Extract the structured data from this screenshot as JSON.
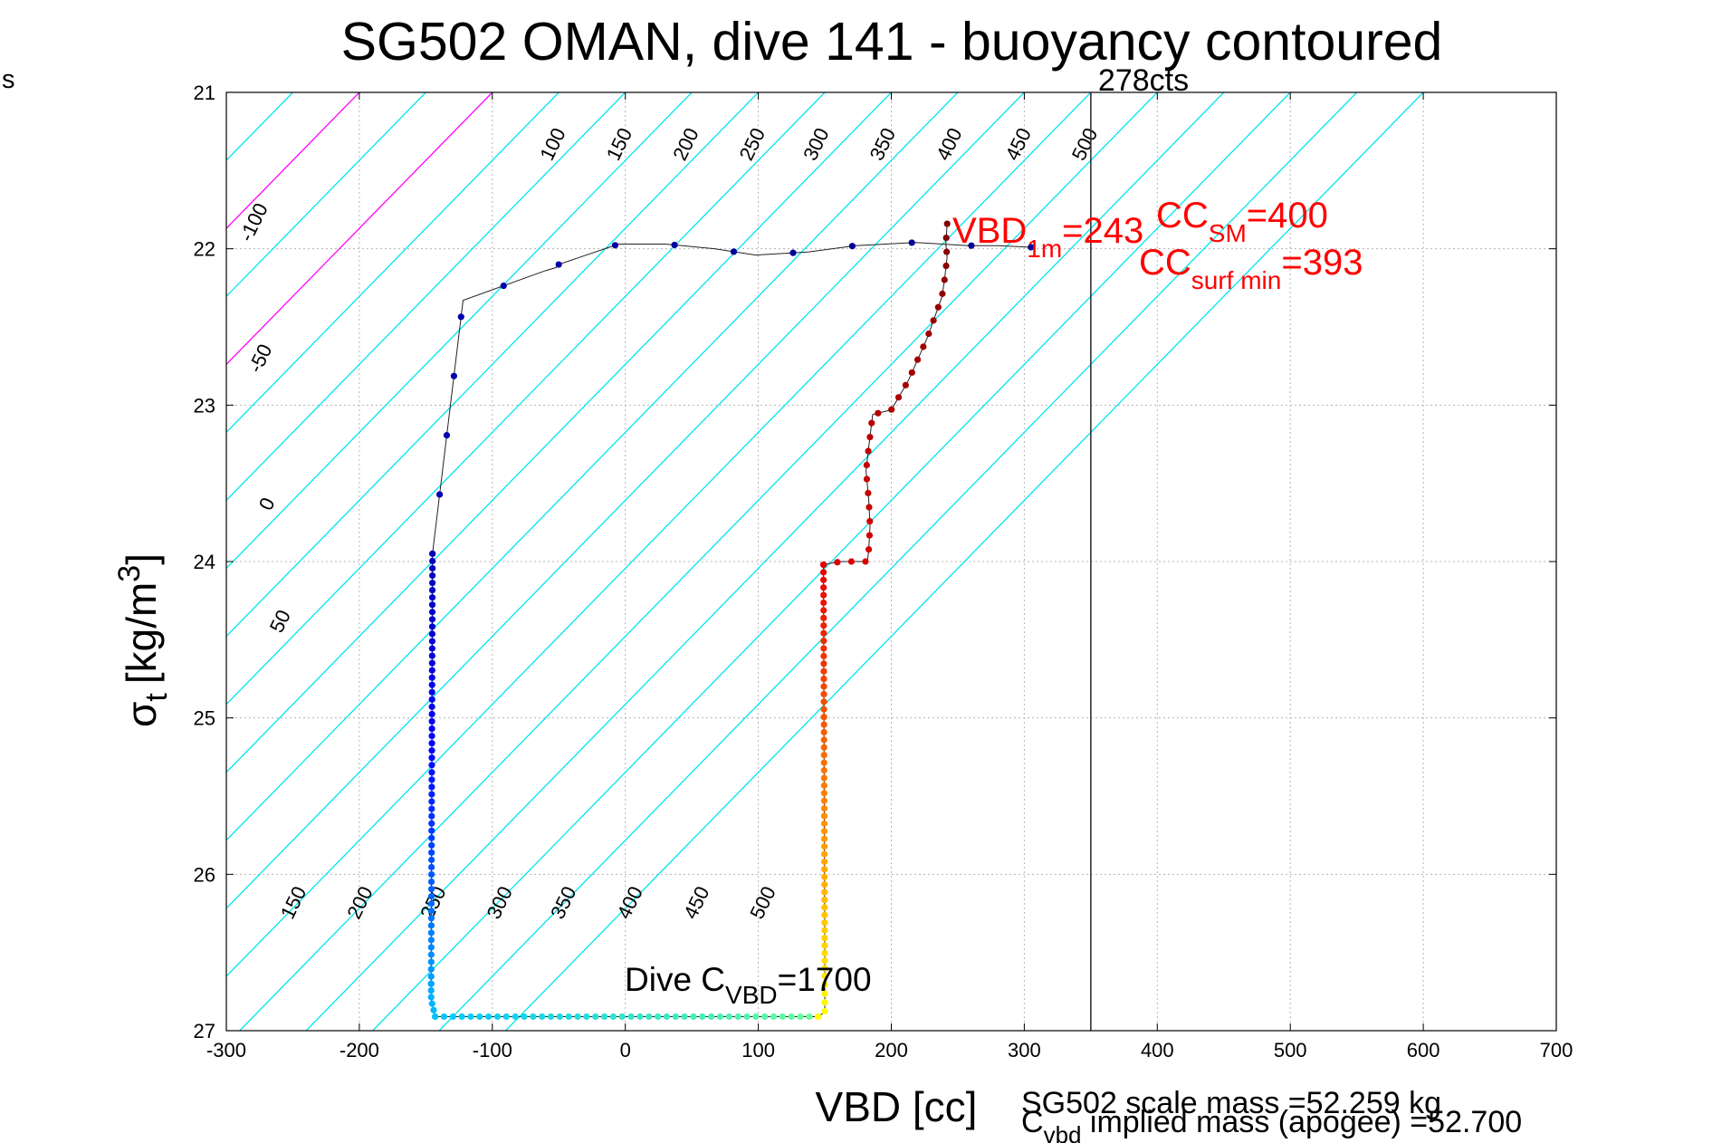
{
  "edge_text": "s",
  "chart_data": {
    "type": "scatter",
    "title": "SG502 OMAN, dive 141 - buoyancy contoured",
    "xlabel": "VBD [cc]",
    "ylabel": {
      "sym": "σ",
      "sub": "t",
      "unit": "[kg/m",
      "sup": "3",
      "close": "]"
    },
    "xlim": [
      -300,
      700
    ],
    "ylim": [
      21,
      27
    ],
    "y_reversed": true,
    "grid": true,
    "x_ticks": [
      -300,
      -200,
      -100,
      0,
      100,
      200,
      300,
      400,
      500,
      600,
      700
    ],
    "x_tick_labels": [
      "-300",
      "-200",
      "-100",
      "0",
      "100",
      "200",
      "300",
      "400",
      "500",
      "600",
      "700"
    ],
    "y_ticks": [
      21,
      22,
      23,
      24,
      25,
      26,
      27
    ],
    "y_tick_labels": [
      "21",
      "22",
      "23",
      "24",
      "25",
      "26",
      "27"
    ],
    "contour_slope_cc_per_sigma": 115,
    "contours": [
      {
        "v": -150,
        "color": "#00e5ee"
      },
      {
        "v": -100,
        "color": "#00e5ee"
      },
      {
        "v": -50,
        "color": "#00e5ee"
      },
      {
        "v": 0,
        "color": "#0000dd"
      },
      {
        "v": 50,
        "color": "#00e5ee"
      },
      {
        "v": 100,
        "color": "#ff00ff"
      },
      {
        "v": 150,
        "color": "#00e5ee"
      },
      {
        "v": 200,
        "color": "#ff00ff"
      },
      {
        "v": 250,
        "color": "#00e5ee"
      },
      {
        "v": 300,
        "color": "#00e5ee"
      },
      {
        "v": 350,
        "color": "#00e5ee"
      },
      {
        "v": 400,
        "color": "#00e5ee"
      },
      {
        "v": 450,
        "color": "#00e5ee"
      },
      {
        "v": 500,
        "color": "#00e5ee"
      },
      {
        "v": 550,
        "color": "#00e5ee"
      },
      {
        "v": 600,
        "color": "#00e5ee"
      },
      {
        "v": 650,
        "color": "#00e5ee"
      },
      {
        "v": 700,
        "color": "#00e5ee"
      },
      {
        "v": 750,
        "color": "#00e5ee"
      },
      {
        "v": 800,
        "color": "#00e5ee"
      },
      {
        "v": 850,
        "color": "#00e5ee"
      },
      {
        "v": 900,
        "color": "#00e5ee"
      }
    ],
    "contour_labels": [
      {
        "text": "-100",
        "x": -275,
        "y": 21.85
      },
      {
        "text": "-50",
        "x": -270,
        "y": 22.72
      },
      {
        "text": "0",
        "x": -265,
        "y": 23.65
      },
      {
        "text": "50",
        "x": -255,
        "y": 24.4
      },
      {
        "text": "100",
        "x": -50,
        "y": 21.35
      },
      {
        "text": "150",
        "x": 0,
        "y": 21.35
      },
      {
        "text": "200",
        "x": 50,
        "y": 21.35
      },
      {
        "text": "250",
        "x": 100,
        "y": 21.35
      },
      {
        "text": "300",
        "x": 148,
        "y": 21.35
      },
      {
        "text": "350",
        "x": 198,
        "y": 21.35
      },
      {
        "text": "400",
        "x": 248,
        "y": 21.35
      },
      {
        "text": "450",
        "x": 300,
        "y": 21.35
      },
      {
        "text": "500",
        "x": 350,
        "y": 21.35
      },
      {
        "text": "150",
        "x": -245,
        "y": 26.2
      },
      {
        "text": "200",
        "x": -195,
        "y": 26.2
      },
      {
        "text": "250",
        "x": -140,
        "y": 26.2
      },
      {
        "text": "300",
        "x": -90,
        "y": 26.2
      },
      {
        "text": "350",
        "x": -42,
        "y": 26.2
      },
      {
        "text": "400",
        "x": 8,
        "y": 26.2
      },
      {
        "text": "450",
        "x": 58,
        "y": 26.2
      },
      {
        "text": "500",
        "x": 108,
        "y": 26.2
      }
    ],
    "series": [
      {
        "direction": "dive",
        "colors": [
          "#00008f",
          "#0000ff",
          "#00ccff",
          "#66ff99"
        ],
        "segments": [
          {
            "points": [
              [
                305,
                21.99
              ],
              [
                280,
                21.98
              ],
              [
                258,
                21.98
              ],
              [
                218,
                21.96
              ],
              [
                173,
                21.98
              ],
              [
                138,
                22.02
              ],
              [
                98,
                22.04
              ],
              [
                67,
                22.0
              ],
              [
                30,
                21.97
              ],
              [
                -5,
                21.97
              ],
              [
                -50,
                22.1
              ],
              [
                -52,
                22.12
              ],
              [
                -60,
                22.14
              ],
              [
                -122,
                22.33
              ],
              [
                -145,
                23.95
              ]
            ],
            "count": 15
          },
          {
            "points": [
              [
                -145,
                23.95
              ],
              [
                -146,
                26.7
              ]
            ],
            "count": 60
          },
          {
            "points": [
              [
                -146,
                26.7
              ],
              [
                -146,
                26.8
              ],
              [
                -143,
                26.91
              ]
            ],
            "count": 6
          },
          {
            "points": [
              [
                -143,
                26.91
              ],
              [
                0,
                26.91
              ],
              [
                145,
                26.91
              ]
            ],
            "count": 44
          }
        ]
      },
      {
        "direction": "climb",
        "colors": [
          "#ffff00",
          "#ff8000",
          "#e60000",
          "#800000"
        ],
        "segments": [
          {
            "points": [
              [
                145,
                26.91
              ],
              [
                150,
                26.88
              ],
              [
                150,
                26.65
              ]
            ],
            "count": 6
          },
          {
            "points": [
              [
                150,
                26.65
              ],
              [
                149,
                24.02
              ]
            ],
            "count": 55
          },
          {
            "points": [
              [
                149,
                24.02
              ],
              [
                155,
                24.01
              ],
              [
                163,
                24.0
              ],
              [
                177,
                24.0
              ],
              [
                182,
                24.0
              ],
              [
                183,
                23.93
              ],
              [
                184,
                23.77
              ],
              [
                183,
                23.6
              ],
              [
                181,
                23.42
              ],
              [
                183,
                23.27
              ],
              [
                186,
                23.06
              ],
              [
                200,
                23.03
              ],
              [
                213,
                22.84
              ],
              [
                227,
                22.57
              ],
              [
                238,
                22.31
              ],
              [
                240,
                22.2
              ],
              [
                242,
                22.05
              ],
              [
                241,
                21.97
              ],
              [
                242,
                21.84
              ]
            ],
            "count": 30
          }
        ]
      }
    ],
    "vertical_line": {
      "x": 350
    },
    "annotations": {
      "vbd_1m": {
        "base": "VBD",
        "sub": "1m",
        "rest": "=243"
      },
      "cc_sm": {
        "base": "CC",
        "sub": "SM",
        "rest": "=400"
      },
      "cc_surf_min": {
        "base": "CC",
        "sub": "surf min",
        "rest": "=393"
      },
      "cts": "278cts",
      "dive_c_vbd": {
        "pre": "Dive C",
        "sub": "VBD",
        "rest": "=1700"
      },
      "scale_mass": "SG502 scale mass =52.259 kg",
      "implied_mass": {
        "base": "C",
        "sub": "vbd",
        "rest": " implied mass (apogee) =52.700"
      }
    }
  }
}
